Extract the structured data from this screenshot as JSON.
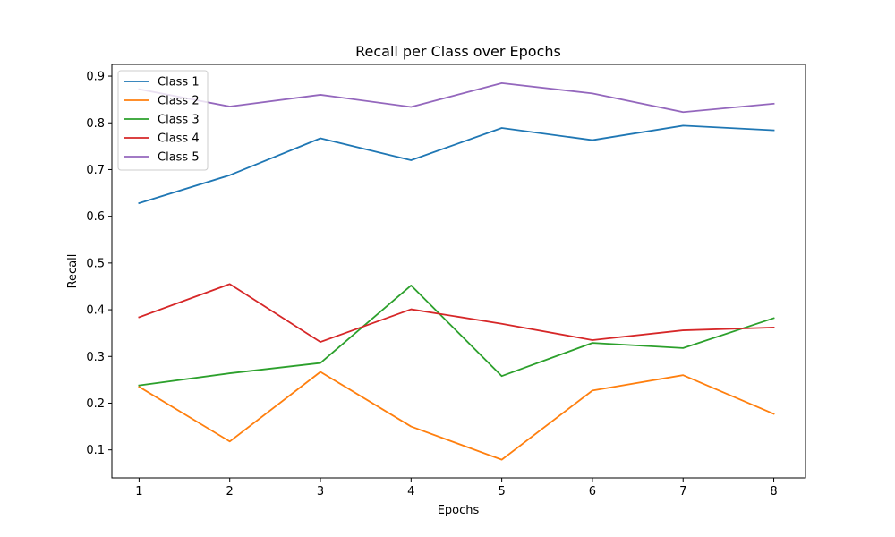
{
  "chart_data": {
    "type": "line",
    "title": "Recall per Class over Epochs",
    "xlabel": "Epochs",
    "ylabel": "Recall",
    "x": [
      1,
      2,
      3,
      4,
      5,
      6,
      7,
      8
    ],
    "xlim": [
      0.7,
      8.35
    ],
    "ylim": [
      0.04,
      0.925
    ],
    "xticks": [
      "1",
      "2",
      "3",
      "4",
      "5",
      "6",
      "7",
      "8"
    ],
    "yticks": [
      "0.1",
      "0.2",
      "0.3",
      "0.4",
      "0.5",
      "0.6",
      "0.7",
      "0.8",
      "0.9"
    ],
    "grid": false,
    "legend_position": "top-left",
    "series": [
      {
        "name": "Class 1",
        "color": "#1f77b4",
        "values": [
          0.628,
          0.688,
          0.767,
          0.72,
          0.789,
          0.763,
          0.794,
          0.784
        ]
      },
      {
        "name": "Class 2",
        "color": "#ff7f0e",
        "values": [
          0.235,
          0.118,
          0.267,
          0.15,
          0.079,
          0.227,
          0.26,
          0.177
        ]
      },
      {
        "name": "Class 3",
        "color": "#2ca02c",
        "values": [
          0.238,
          0.264,
          0.286,
          0.452,
          0.258,
          0.329,
          0.318,
          0.382
        ]
      },
      {
        "name": "Class 4",
        "color": "#d62728",
        "values": [
          0.384,
          0.455,
          0.331,
          0.401,
          0.37,
          0.335,
          0.356,
          0.362
        ]
      },
      {
        "name": "Class 5",
        "color": "#9467bd",
        "values": [
          0.872,
          0.835,
          0.86,
          0.834,
          0.885,
          0.863,
          0.823,
          0.841
        ]
      }
    ]
  }
}
